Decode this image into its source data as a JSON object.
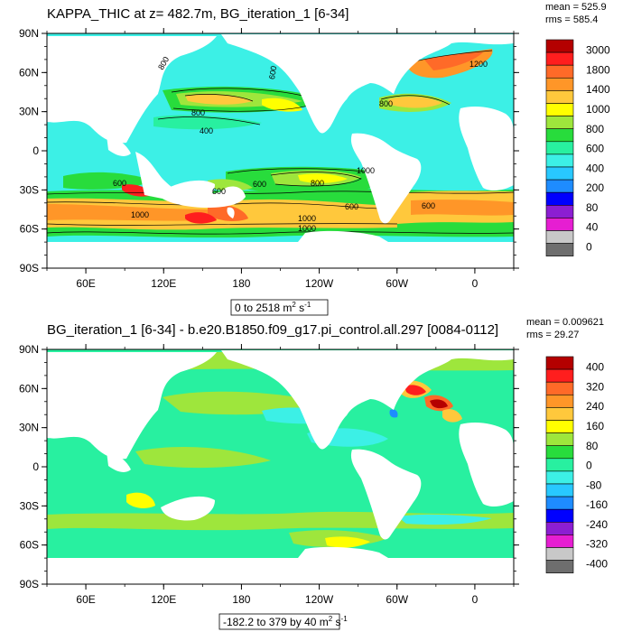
{
  "chart_data": [
    {
      "type": "heatmap",
      "title": "KAPPA_THIC at z= 482.7m, BG_iteration_1 [6-34]",
      "stats": {
        "mean": "mean = 525.9",
        "rms": "rms = 585.4"
      },
      "range_note_prefix": "0 to 2518 m",
      "range_note_suffix": " s",
      "lat_ticks": [
        "90N",
        "60N",
        "30N",
        "0",
        "30S",
        "60S",
        "90S"
      ],
      "lon_ticks": [
        "60E",
        "120E",
        "180",
        "120W",
        "60W",
        "0"
      ],
      "colorbar_labels": [
        "3000",
        "1800",
        "1400",
        "1000",
        "800",
        "600",
        "400",
        "200",
        "80",
        "40",
        "0"
      ],
      "colorbar_colors": [
        "#b40000",
        "#ff1e1e",
        "#ff6a28",
        "#ff9628",
        "#ffc83c",
        "#ffff00",
        "#9ee63c",
        "#28dc3c",
        "#28f0a0",
        "#3cf0e6",
        "#28c8ff",
        "#1e8cff",
        "#0000ff",
        "#8c1ed2",
        "#e61ed2",
        "#c8c8c8",
        "#6e6e6e"
      ],
      "contour_labels": [
        "800",
        "400",
        "600",
        "800",
        "800",
        "600",
        "600",
        "1000",
        "600",
        "600",
        "600",
        "1000",
        "1000",
        "800",
        "1000",
        "1200"
      ]
    },
    {
      "type": "heatmap",
      "title": "BG_iteration_1 [6-34] - b.e20.B1850.f09_g17.pi_control.all.297 [0084-0112]",
      "stats": {
        "mean": "mean = 0.009621",
        "rms": "rms = 29.27"
      },
      "range_note_prefix": "-182.2 to 379 by 40 m",
      "range_note_suffix": " s",
      "lat_ticks": [
        "90N",
        "60N",
        "30N",
        "0",
        "30S",
        "60S",
        "90S"
      ],
      "lon_ticks": [
        "60E",
        "120E",
        "180",
        "120W",
        "60W",
        "0"
      ],
      "colorbar_labels": [
        "400",
        "320",
        "240",
        "160",
        "80",
        "0",
        "-80",
        "-160",
        "-240",
        "-320",
        "-400"
      ],
      "colorbar_colors": [
        "#b40000",
        "#ff1e1e",
        "#ff6a28",
        "#ff9628",
        "#ffc83c",
        "#ffff00",
        "#9ee63c",
        "#28dc3c",
        "#28f0a0",
        "#3cf0e6",
        "#28c8ff",
        "#1e8cff",
        "#0000ff",
        "#8c1ed2",
        "#e61ed2",
        "#c8c8c8",
        "#6e6e6e"
      ]
    }
  ],
  "units": {
    "sq": "2",
    "inv": "-1"
  }
}
